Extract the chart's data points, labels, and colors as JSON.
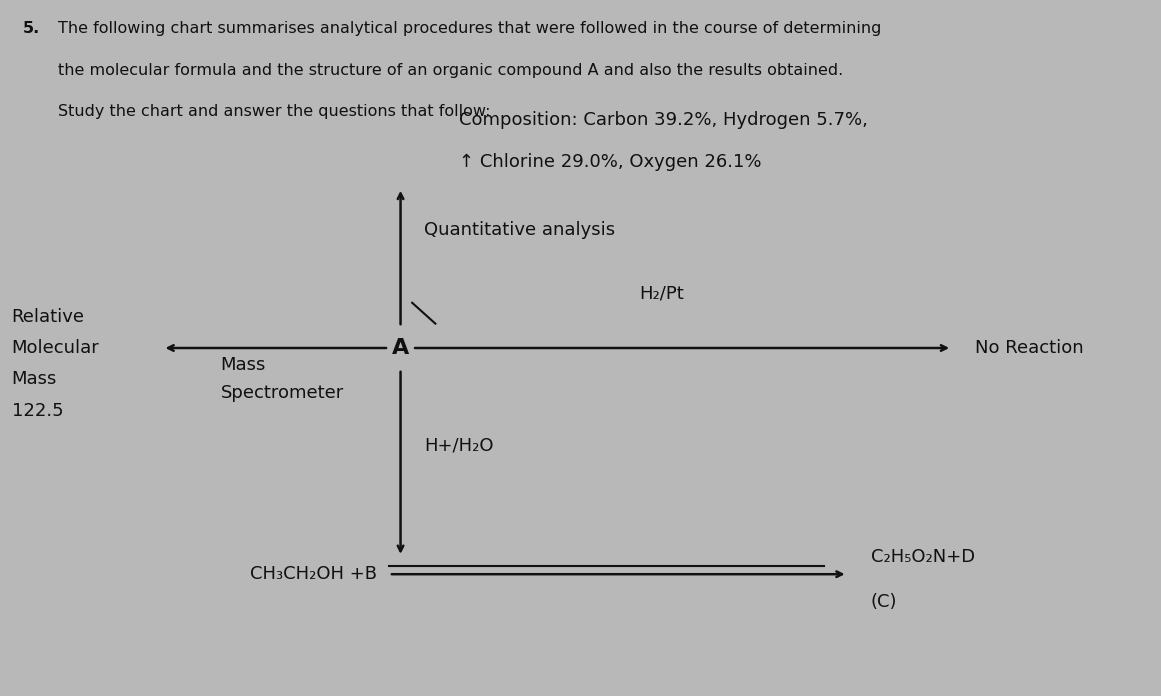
{
  "background_color": "#b8b8b8",
  "title_number": "5.",
  "title_line1": "The following chart summarises analytical procedures that were followed in the course of determining",
  "title_line2": "the molecular formula and the structure of an organic compound A and also the results obtained.",
  "title_line3": "Study the chart and answer the questions that follow:",
  "composition_line1": "Composition: Carbon 39.2%, Hydrogen 5.7%,",
  "composition_line2": "↑ Chlorine 29.0%, Oxygen 26.1%",
  "quant_label": "Quantitative analysis",
  "h2pt_label": "H₂/Pt",
  "no_reaction_label": "No Reaction",
  "center_label": "A",
  "left_label1": "Relative",
  "left_label2": "Molecular",
  "left_label3": "Mass",
  "left_label4": "122.5",
  "mass_spec_label1": "Mass",
  "mass_spec_label2": "Spectrometer",
  "h_water_label": "H+/H₂O",
  "bottom_left_label": "CH₃CH₂OH +B",
  "bottom_right_label": "C₂H₅O₂N+D",
  "bottom_right_label2": "(C)",
  "font_size_title": 11.5,
  "font_size_body": 13,
  "font_size_label": 14,
  "text_color": "#111111"
}
